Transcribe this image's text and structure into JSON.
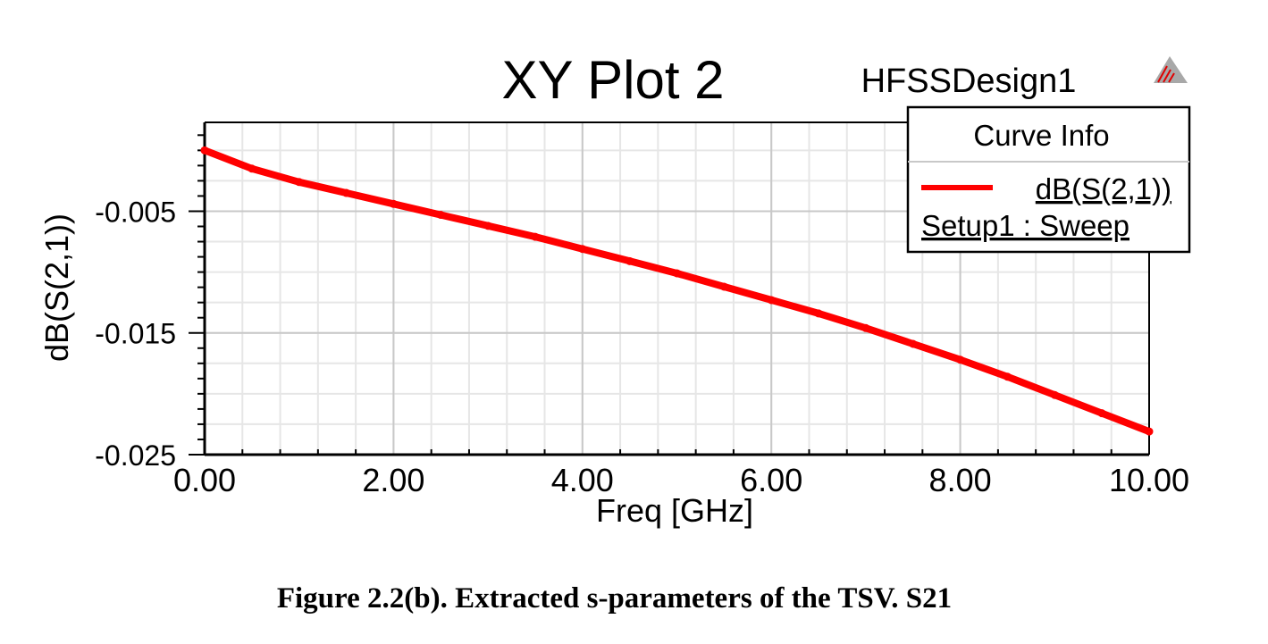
{
  "chart_data": {
    "type": "line",
    "title": "XY Plot 2",
    "design_name": "HFSSDesign1",
    "xlabel": "Freq [GHz]",
    "ylabel": "dB(S(2,1))",
    "xlim": [
      0,
      10
    ],
    "ylim": [
      -0.025,
      0.0023
    ],
    "x_ticks": [
      0,
      2,
      4,
      6,
      8,
      10
    ],
    "x_tick_labels": [
      "0.00",
      "2.00",
      "4.00",
      "6.00",
      "8.00",
      "10.00"
    ],
    "y_ticks": [
      -0.005,
      -0.015,
      -0.025
    ],
    "y_tick_labels": [
      "-0.005",
      "-0.015",
      "-0.025"
    ],
    "grid": true,
    "legend": {
      "title": "Curve Info",
      "placement": "top-right",
      "entries": [
        {
          "name": "dB(S(2,1))",
          "subtitle": "Setup1 : Sweep",
          "color": "#ff0000"
        }
      ]
    },
    "series": [
      {
        "name": "dB(S(2,1))",
        "color": "#ff0000",
        "x": [
          0,
          0.5,
          1,
          1.5,
          2,
          2.5,
          3,
          3.5,
          4,
          4.5,
          5,
          5.5,
          6,
          6.5,
          7,
          7.5,
          8,
          8.5,
          9,
          9.5,
          10
        ],
        "values": [
          0,
          -0.0015,
          -0.0026,
          -0.0035,
          -0.0044,
          -0.0053,
          -0.0062,
          -0.0071,
          -0.0081,
          -0.0091,
          -0.0101,
          -0.0112,
          -0.0123,
          -0.0134,
          -0.0146,
          -0.0159,
          -0.0172,
          -0.0186,
          -0.0201,
          -0.0216,
          -0.0231
        ]
      }
    ]
  },
  "caption": "Figure 2.2(b). Extracted s-parameters of the TSV. S21"
}
